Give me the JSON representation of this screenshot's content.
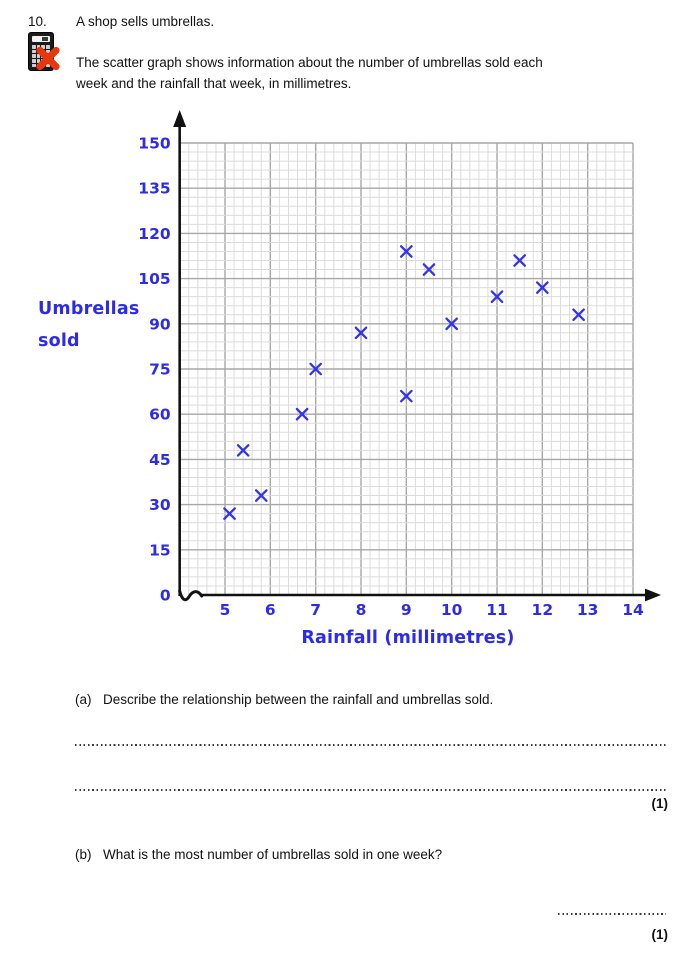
{
  "question": {
    "number": "10.",
    "intro": "A shop sells umbrellas.",
    "description_lines": [
      "The scatter graph shows information about the number of umbrellas sold each",
      "week and the rainfall that week, in millimetres."
    ],
    "non_calculator_icon": "calculator-crossed-out"
  },
  "chart_data": {
    "type": "scatter",
    "title": "",
    "xlabel": "Rainfall (millimetres)",
    "ylabel": "Umbrellas sold",
    "ylabel_lines": [
      "Umbrellas",
      "sold"
    ],
    "xlim": [
      4,
      14
    ],
    "ylim": [
      0,
      150
    ],
    "x_ticks": [
      5,
      6,
      7,
      8,
      9,
      10,
      11,
      12,
      13,
      14
    ],
    "y_ticks": [
      0,
      15,
      30,
      45,
      60,
      75,
      90,
      105,
      120,
      135,
      150
    ],
    "origin_label": "0",
    "axis_break_on_x": true,
    "grid": "graph paper: minor lines every 0.2 (x) and 3 (y), darker line every 5th",
    "legend": "none",
    "marker": "x",
    "points": [
      {
        "x": 5.1,
        "y": 27
      },
      {
        "x": 5.4,
        "y": 48
      },
      {
        "x": 5.8,
        "y": 33
      },
      {
        "x": 6.7,
        "y": 60
      },
      {
        "x": 7,
        "y": 75
      },
      {
        "x": 8,
        "y": 87
      },
      {
        "x": 9,
        "y": 66
      },
      {
        "x": 9,
        "y": 114
      },
      {
        "x": 9.5,
        "y": 108
      },
      {
        "x": 10,
        "y": 90
      },
      {
        "x": 11,
        "y": 99
      },
      {
        "x": 11.5,
        "y": 111
      },
      {
        "x": 12,
        "y": 102
      },
      {
        "x": 12.8,
        "y": 93
      }
    ],
    "max_umbrellas_sold": 114
  },
  "parts": {
    "a": {
      "label": "(a)",
      "text": "Describe the relationship between the rainfall and umbrellas sold.",
      "answer_lines": 2,
      "marks": "(1)"
    },
    "b": {
      "label": "(b)",
      "text": "What is the most number of umbrellas sold in one week?",
      "answer_lines": 1,
      "marks": "(1)"
    }
  },
  "colors": {
    "accent_blue": "#2c2ce8",
    "axis_black": "#111111",
    "grid_minor": "#dcdcdc",
    "grid_medium": "#a7a7a7",
    "no_calc_red": "#e8360f",
    "marker_blue": "#3434e8"
  }
}
